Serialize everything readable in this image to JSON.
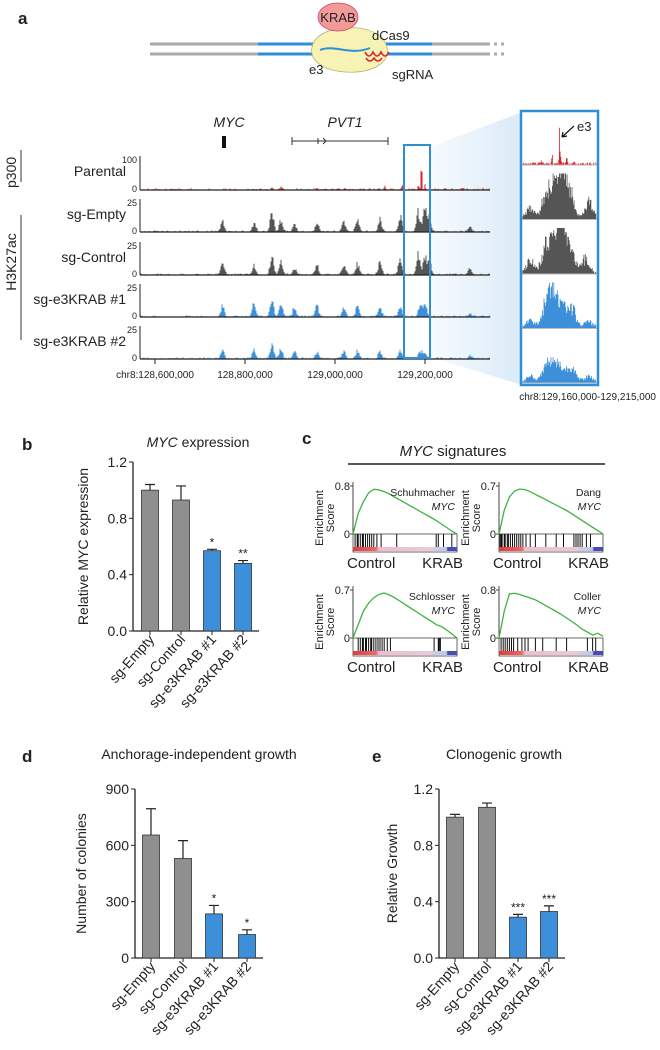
{
  "panel_labels": {
    "a": "a",
    "b": "b",
    "c": "c",
    "d": "d",
    "e": "e"
  },
  "colors": {
    "gray": "#8f8f8f",
    "blue": "#3d8fd9",
    "red": "#d9262e",
    "track_gray": "#555555",
    "green": "#3cb43c",
    "box": "#2f8fd6"
  },
  "schematic": {
    "krab": "KRAB",
    "dcas9": "dCas9",
    "e3": "e3",
    "sgrna": "sgRNA"
  },
  "tracks": {
    "genes": {
      "myc": "MYC",
      "pvt1": "PVT1"
    },
    "group_labels": {
      "p300": "p300",
      "h3k27ac": "H3K27ac"
    },
    "x_ticks": [
      {
        "pos": 128.6,
        "label": "chr8:128,600,000"
      },
      {
        "pos": 128.8,
        "label": "128,800,000"
      },
      {
        "pos": 129.0,
        "label": "129,000,000"
      },
      {
        "pos": 129.2,
        "label": "129,200,000"
      }
    ],
    "zoom_label": "chr8:129,160,000-129,215,000",
    "zoom_e3_label": "e3",
    "rows": [
      {
        "name": "Parental",
        "ymax_label": "100",
        "zero_label": "0",
        "color": "#d9262e",
        "peaks": [
          [
            128.68,
            0.05
          ],
          [
            128.86,
            0.08
          ],
          [
            128.88,
            0.1
          ],
          [
            128.96,
            0.05
          ],
          [
            129.02,
            0.04
          ],
          [
            129.11,
            0.12
          ],
          [
            129.15,
            0.28
          ],
          [
            129.185,
            0.12
          ],
          [
            129.192,
            0.98
          ],
          [
            129.2,
            0.3
          ],
          [
            129.26,
            0.05
          ],
          [
            129.33,
            0.06
          ]
        ],
        "zoom_peaks": [
          [
            0.25,
            0.1
          ],
          [
            0.4,
            0.25
          ],
          [
            0.5,
            0.95
          ],
          [
            0.52,
            0.15
          ],
          [
            0.6,
            0.25
          ],
          [
            0.7,
            0.08
          ]
        ]
      },
      {
        "name": "sg-Empty",
        "ymax_label": "25",
        "zero_label": "0",
        "color": "#555555",
        "peaks": [
          [
            128.75,
            0.45
          ],
          [
            128.82,
            0.3
          ],
          [
            128.86,
            0.75
          ],
          [
            128.88,
            0.4
          ],
          [
            128.91,
            0.25
          ],
          [
            128.96,
            0.35
          ],
          [
            129.02,
            0.4
          ],
          [
            129.05,
            0.45
          ],
          [
            129.1,
            0.5
          ],
          [
            129.145,
            0.55
          ],
          [
            129.185,
            0.75
          ],
          [
            129.2,
            0.85
          ],
          [
            129.21,
            0.55
          ],
          [
            129.3,
            0.2
          ]
        ],
        "zoom_peaks": [
          [
            0.1,
            0.3
          ],
          [
            0.3,
            0.55
          ],
          [
            0.4,
            0.8
          ],
          [
            0.5,
            0.95
          ],
          [
            0.55,
            0.75
          ],
          [
            0.65,
            0.7
          ],
          [
            0.9,
            0.45
          ]
        ]
      },
      {
        "name": "sg-Control",
        "ymax_label": "25",
        "zero_label": "0",
        "color": "#555555",
        "peaks": [
          [
            128.75,
            0.45
          ],
          [
            128.82,
            0.35
          ],
          [
            128.86,
            0.8
          ],
          [
            128.88,
            0.45
          ],
          [
            128.91,
            0.25
          ],
          [
            128.96,
            0.3
          ],
          [
            129.02,
            0.4
          ],
          [
            129.05,
            0.4
          ],
          [
            129.1,
            0.5
          ],
          [
            129.145,
            0.6
          ],
          [
            129.185,
            0.8
          ],
          [
            129.2,
            0.75
          ],
          [
            129.21,
            0.5
          ],
          [
            129.3,
            0.25
          ]
        ],
        "zoom_peaks": [
          [
            0.1,
            0.35
          ],
          [
            0.3,
            0.6
          ],
          [
            0.4,
            0.85
          ],
          [
            0.5,
            0.95
          ],
          [
            0.55,
            0.8
          ],
          [
            0.65,
            0.75
          ],
          [
            0.85,
            0.4
          ]
        ]
      },
      {
        "name": "sg-e3KRAB #1",
        "ymax_label": "25",
        "zero_label": "0",
        "color": "#3d8fd9",
        "peaks": [
          [
            128.75,
            0.4
          ],
          [
            128.82,
            0.55
          ],
          [
            128.86,
            0.6
          ],
          [
            128.88,
            0.45
          ],
          [
            128.91,
            0.35
          ],
          [
            128.96,
            0.4
          ],
          [
            129.02,
            0.35
          ],
          [
            129.05,
            0.4
          ],
          [
            129.1,
            0.3
          ],
          [
            129.145,
            0.35
          ],
          [
            129.19,
            0.55
          ],
          [
            129.2,
            0.45
          ],
          [
            129.3,
            0.1
          ]
        ],
        "zoom_peaks": [
          [
            0.1,
            0.2
          ],
          [
            0.3,
            0.45
          ],
          [
            0.38,
            0.85
          ],
          [
            0.45,
            0.6
          ],
          [
            0.55,
            0.55
          ],
          [
            0.68,
            0.5
          ],
          [
            0.9,
            0.2
          ]
        ]
      },
      {
        "name": "sg-e3KRAB #2",
        "ymax_label": "25",
        "zero_label": "0",
        "color": "#3d8fd9",
        "peaks": [
          [
            128.75,
            0.35
          ],
          [
            128.82,
            0.3
          ],
          [
            128.86,
            0.55
          ],
          [
            128.88,
            0.35
          ],
          [
            128.91,
            0.25
          ],
          [
            128.96,
            0.25
          ],
          [
            129.02,
            0.3
          ],
          [
            129.05,
            0.3
          ],
          [
            129.1,
            0.3
          ],
          [
            129.145,
            0.3
          ],
          [
            129.19,
            0.3
          ],
          [
            129.2,
            0.2
          ],
          [
            129.3,
            0.1
          ]
        ],
        "zoom_peaks": [
          [
            0.1,
            0.15
          ],
          [
            0.3,
            0.35
          ],
          [
            0.4,
            0.55
          ],
          [
            0.5,
            0.4
          ],
          [
            0.6,
            0.3
          ],
          [
            0.7,
            0.25
          ],
          [
            0.9,
            0.15
          ]
        ]
      }
    ]
  },
  "chart_data": [
    {
      "type": "bar",
      "id": "b",
      "title": "MYC expression",
      "title_italic": "MYC",
      "title_rest": " expression",
      "ylabel": "Relative MYC expression",
      "ylim": [
        0,
        1.2
      ],
      "yticks": [
        {
          "v": 0,
          "label": "0.0"
        },
        {
          "v": 0.4,
          "label": "0.4"
        },
        {
          "v": 0.8,
          "label": "0.8"
        },
        {
          "v": 1.2,
          "label": "1.2"
        }
      ],
      "categories": [
        "sg-Empty",
        "sg-Control",
        "sg-e3KRAB #1",
        "sg-e3KRAB #2"
      ],
      "values": [
        1.0,
        0.93,
        0.57,
        0.48
      ],
      "errors": [
        0.04,
        0.1,
        0.01,
        0.02
      ],
      "significance": [
        "",
        "",
        "*",
        "**"
      ],
      "bar_colors": [
        "gray",
        "gray",
        "blue",
        "blue"
      ]
    },
    {
      "type": "line",
      "id": "c",
      "title_italic": "MYC",
      "title_rest": " signatures",
      "ylabel_line1": "Enrichment",
      "ylabel_line2": "Score",
      "xlabel_left": "Control",
      "xlabel_right": "KRAB",
      "plots": [
        {
          "name": "Schuhmacher",
          "gene": "MYC",
          "ymax_label": "0.8",
          "zero_label": "0",
          "ymax": 0.8,
          "es": [
            0,
            0.35,
            0.55,
            0.7,
            0.76,
            0.75,
            0.72,
            0.68,
            0.63,
            0.58,
            0.53,
            0.48,
            0.43,
            0.38,
            0.33,
            0.28,
            0.23,
            0.17,
            0.11,
            0.05,
            0
          ],
          "hits": [
            0.02,
            0.04,
            0.05,
            0.07,
            0.09,
            0.1,
            0.12,
            0.14,
            0.16,
            0.18,
            0.2,
            0.23,
            0.27,
            0.42,
            0.8,
            0.82,
            0.87,
            0.95
          ]
        },
        {
          "name": "Dang",
          "gene": "MYC",
          "ymax_label": "0.7",
          "zero_label": "0",
          "ymax": 0.7,
          "es": [
            0,
            0.35,
            0.55,
            0.64,
            0.67,
            0.66,
            0.63,
            0.59,
            0.55,
            0.51,
            0.47,
            0.43,
            0.39,
            0.35,
            0.3,
            0.25,
            0.2,
            0.15,
            0.1,
            0.05,
            0
          ],
          "hits": [
            0.01,
            0.02,
            0.03,
            0.05,
            0.06,
            0.08,
            0.09,
            0.11,
            0.13,
            0.15,
            0.17,
            0.19,
            0.21,
            0.23,
            0.26,
            0.3,
            0.35,
            0.45,
            0.55,
            0.62,
            0.72,
            0.74,
            0.76,
            0.78,
            0.8,
            0.84,
            0.88
          ]
        },
        {
          "name": "Schlosser",
          "gene": "MYC",
          "ymax_label": "0.7",
          "zero_label": "0",
          "ymax": 0.7,
          "es": [
            0,
            0.2,
            0.4,
            0.52,
            0.6,
            0.65,
            0.67,
            0.64,
            0.6,
            0.55,
            0.5,
            0.45,
            0.4,
            0.35,
            0.3,
            0.25,
            0.2,
            0.17,
            0.12,
            0.06,
            0
          ],
          "hits": [
            0.05,
            0.07,
            0.09,
            0.1,
            0.12,
            0.13,
            0.15,
            0.17,
            0.18,
            0.2,
            0.22,
            0.24,
            0.26,
            0.28,
            0.3,
            0.33,
            0.36,
            0.78,
            0.82,
            0.83,
            0.84
          ]
        },
        {
          "name": "Coller",
          "gene": "MYC",
          "ymax_label": "0.8",
          "zero_label": "0",
          "ymax": 0.8,
          "es": [
            0,
            0.45,
            0.75,
            0.76,
            0.74,
            0.71,
            0.68,
            0.65,
            0.6,
            0.55,
            0.5,
            0.45,
            0.4,
            0.34,
            0.28,
            0.22,
            0.15,
            0.1,
            0.05,
            0.08,
            0.03
          ],
          "hits": [
            0.02,
            0.04,
            0.06,
            0.08,
            0.1,
            0.12,
            0.14,
            0.18,
            0.22,
            0.25,
            0.28,
            0.35,
            0.42,
            0.55,
            0.65,
            0.85,
            0.9,
            0.93
          ]
        }
      ]
    },
    {
      "type": "bar",
      "id": "d",
      "title": "Anchorage-independent growth",
      "ylabel": "Number of colonies",
      "ylim": [
        0,
        900
      ],
      "yticks": [
        {
          "v": 0,
          "label": "0"
        },
        {
          "v": 300,
          "label": "300"
        },
        {
          "v": 600,
          "label": "600"
        },
        {
          "v": 900,
          "label": "900"
        }
      ],
      "categories": [
        "sg-Empty",
        "sg-Control",
        "sg-e3KRAB #1",
        "sg-e3KRAB #2"
      ],
      "values": [
        655,
        530,
        235,
        125
      ],
      "errors": [
        140,
        95,
        45,
        25
      ],
      "significance": [
        "",
        "",
        "*",
        "*"
      ],
      "bar_colors": [
        "gray",
        "gray",
        "blue",
        "blue"
      ]
    },
    {
      "type": "bar",
      "id": "e",
      "title": "Clonogenic growth",
      "ylabel": "Relative Growth",
      "ylim": [
        0,
        1.2
      ],
      "yticks": [
        {
          "v": 0,
          "label": "0.0"
        },
        {
          "v": 0.4,
          "label": "0.4"
        },
        {
          "v": 0.8,
          "label": "0.8"
        },
        {
          "v": 1.2,
          "label": "1.2"
        }
      ],
      "categories": [
        "sg-Empty",
        "sg-Control",
        "sg-e3KRAB #1",
        "sg-e3KRAB #2"
      ],
      "values": [
        1.0,
        1.07,
        0.29,
        0.33
      ],
      "errors": [
        0.02,
        0.03,
        0.02,
        0.04
      ],
      "significance": [
        "",
        "",
        "***",
        "***"
      ],
      "bar_colors": [
        "gray",
        "gray",
        "blue",
        "blue"
      ]
    }
  ]
}
